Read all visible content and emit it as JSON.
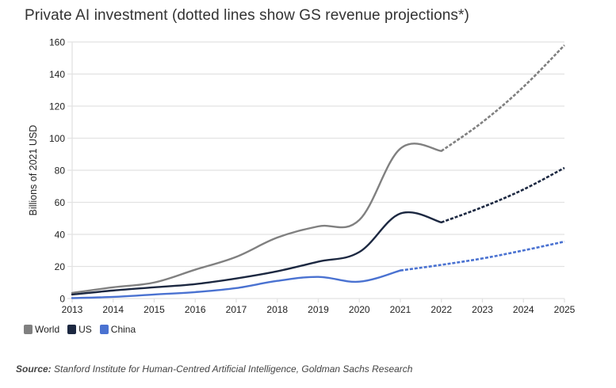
{
  "title": "Private AI investment (dotted lines show GS revenue projections*)",
  "source": {
    "label": "Source:",
    "text": "Stanford Institute for Human-Centred Artificial Intelligence, Goldman Sachs Research"
  },
  "legend": [
    {
      "name": "World",
      "color": "#808080"
    },
    {
      "name": "US",
      "color": "#1c2841"
    },
    {
      "name": "China",
      "color": "#4a72d1"
    }
  ],
  "chart_data": {
    "type": "line",
    "title": "Private AI investment (dotted lines show GS revenue projections*)",
    "xlabel": "",
    "ylabel": "Billions of 2021 USD",
    "x": [
      2013,
      2014,
      2015,
      2016,
      2017,
      2018,
      2019,
      2020,
      2021,
      2022,
      2023,
      2024,
      2025
    ],
    "x_tick_labels": [
      "2013",
      "2014",
      "2015",
      "2016",
      "2017",
      "2018",
      "2019",
      "2020",
      "2021",
      "2022",
      "2023",
      "2024",
      "2025"
    ],
    "y_tick_labels": [
      "0",
      "20",
      "40",
      "60",
      "80",
      "100",
      "120",
      "140",
      "160"
    ],
    "ylim": [
      0,
      160
    ],
    "grid": "horizontal",
    "legend_position": "bottom-left",
    "projection_note": "dotted segments are projections",
    "series": [
      {
        "name": "World",
        "color": "#808080",
        "values": [
          3.5,
          7,
          10,
          18,
          26,
          38,
          45,
          49,
          93.5,
          92,
          110,
          132,
          158
        ],
        "actual_through": 2021,
        "projected_from": 2022
      },
      {
        "name": "US",
        "color": "#1c2841",
        "values": [
          2.5,
          5,
          7,
          9,
          12.5,
          17,
          23,
          29,
          53,
          47.5,
          57,
          68,
          81.5
        ],
        "actual_through": 2021,
        "projected_from": 2022
      },
      {
        "name": "China",
        "color": "#4a72d1",
        "values": [
          0.3,
          1,
          2.5,
          4,
          6.5,
          11,
          13.5,
          10.5,
          17.5,
          21,
          25,
          30,
          35.5
        ],
        "actual_through": 2020,
        "projected_from": 2021
      }
    ]
  }
}
